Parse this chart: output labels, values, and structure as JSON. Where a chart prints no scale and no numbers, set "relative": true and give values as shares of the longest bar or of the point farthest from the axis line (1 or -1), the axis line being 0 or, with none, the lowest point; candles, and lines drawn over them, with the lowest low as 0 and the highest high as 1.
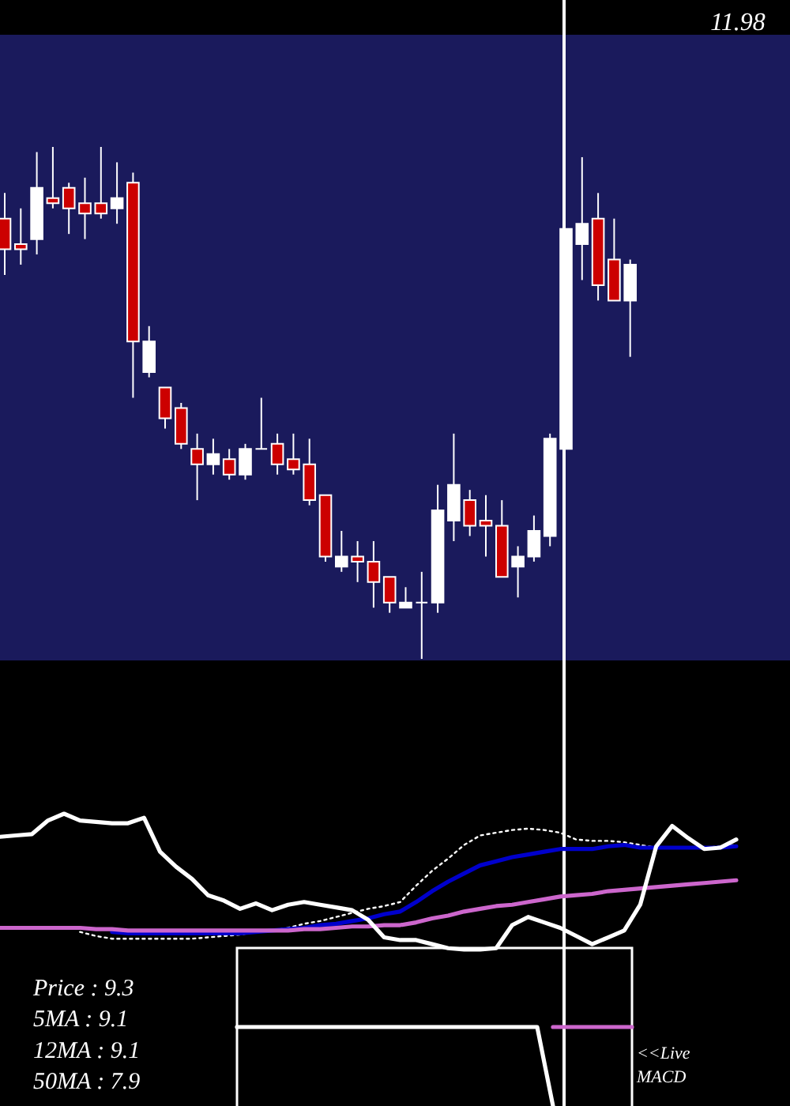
{
  "chart_data": [
    {
      "type": "candlestick",
      "relative": true,
      "tick_labels": false,
      "categories": [
        null,
        null,
        null,
        null,
        null,
        null,
        null,
        null,
        null,
        null,
        null,
        null,
        null,
        null,
        null,
        null,
        null,
        null,
        null,
        null,
        null,
        null,
        null,
        null,
        null,
        null,
        null,
        null,
        null,
        null,
        null,
        null,
        null,
        null,
        null,
        null,
        null,
        null,
        null,
        null
      ],
      "ohlc": [
        [
          0.86,
          0.91,
          0.75,
          0.8
        ],
        [
          0.81,
          0.88,
          0.77,
          0.8
        ],
        [
          0.82,
          0.99,
          0.79,
          0.92
        ],
        [
          0.9,
          1.0,
          0.88,
          0.89
        ],
        [
          0.92,
          0.93,
          0.83,
          0.88
        ],
        [
          0.89,
          0.94,
          0.82,
          0.87
        ],
        [
          0.89,
          1.0,
          0.86,
          0.87
        ],
        [
          0.88,
          0.97,
          0.85,
          0.9
        ],
        [
          0.93,
          0.95,
          0.51,
          0.62
        ],
        [
          0.56,
          0.65,
          0.55,
          0.62
        ],
        [
          0.53,
          0.53,
          0.45,
          0.47
        ],
        [
          0.49,
          0.5,
          0.41,
          0.42
        ],
        [
          0.41,
          0.44,
          0.31,
          0.38
        ],
        [
          0.38,
          0.43,
          0.36,
          0.4
        ],
        [
          0.39,
          0.41,
          0.35,
          0.36
        ],
        [
          0.36,
          0.42,
          0.35,
          0.41
        ],
        [
          0.41,
          0.51,
          0.41,
          0.41
        ],
        [
          0.42,
          0.44,
          0.36,
          0.38
        ],
        [
          0.39,
          0.44,
          0.36,
          0.37
        ],
        [
          0.38,
          0.43,
          0.3,
          0.31
        ],
        [
          0.32,
          0.32,
          0.19,
          0.2
        ],
        [
          0.18,
          0.25,
          0.17,
          0.2
        ],
        [
          0.2,
          0.23,
          0.15,
          0.19
        ],
        [
          0.19,
          0.23,
          0.1,
          0.15
        ],
        [
          0.16,
          0.16,
          0.09,
          0.11
        ],
        [
          0.1,
          0.14,
          0.1,
          0.11
        ],
        [
          0.11,
          0.17,
          0.0,
          0.11
        ],
        [
          0.11,
          0.34,
          0.09,
          0.29
        ],
        [
          0.27,
          0.44,
          0.23,
          0.34
        ],
        [
          0.31,
          0.33,
          0.24,
          0.26
        ],
        [
          0.27,
          0.32,
          0.2,
          0.26
        ],
        [
          0.26,
          0.31,
          0.16,
          0.16
        ],
        [
          0.18,
          0.22,
          0.12,
          0.2
        ],
        [
          0.2,
          0.28,
          0.19,
          0.25
        ],
        [
          0.24,
          0.44,
          0.22,
          0.43
        ],
        [
          0.41,
          0.84,
          0.41,
          0.84
        ],
        [
          0.81,
          0.98,
          0.74,
          0.85
        ],
        [
          0.86,
          0.91,
          0.7,
          0.73
        ],
        [
          0.78,
          0.86,
          0.7,
          0.7
        ],
        [
          0.7,
          0.78,
          0.59,
          0.77
        ]
      ],
      "colors": [
        "#cc0000",
        "#cc0000",
        "#ffffff",
        "#cc0000",
        "#cc0000",
        "#cc0000",
        "#cc0000",
        "#ffffff",
        "#cc0000",
        "#ffffff",
        "#cc0000",
        "#cc0000",
        "#cc0000",
        "#ffffff",
        "#cc0000",
        "#ffffff",
        "#ffffff",
        "#cc0000",
        "#cc0000",
        "#cc0000",
        "#cc0000",
        "#ffffff",
        "#cc0000",
        "#cc0000",
        "#cc0000",
        "#ffffff",
        "#ffffff",
        "#ffffff",
        "#ffffff",
        "#cc0000",
        "#cc0000",
        "#cc0000",
        "#ffffff",
        "#ffffff",
        "#ffffff",
        "#ffffff",
        "#ffffff",
        "#cc0000",
        "#cc0000",
        "#ffffff"
      ],
      "annotations": [
        "11.98"
      ]
    },
    {
      "type": "line",
      "relative": true,
      "tick_labels": false,
      "categories": [
        null,
        null,
        null,
        null,
        null,
        null,
        null,
        null,
        null,
        null,
        null,
        null,
        null,
        null,
        null,
        null,
        null,
        null,
        null,
        null,
        null,
        null,
        null,
        null,
        null,
        null,
        null,
        null,
        null,
        null,
        null,
        null,
        null,
        null,
        null,
        null,
        null,
        null,
        null,
        null,
        null,
        null,
        null,
        null,
        null,
        null,
        null
      ],
      "series": [
        {
          "color": "#ffffff",
          "line_style": "dotted",
          "values": [
            null,
            null,
            null,
            null,
            null,
            0.13,
            0.1,
            0.08,
            0.08,
            0.08,
            0.08,
            0.08,
            0.08,
            0.09,
            0.1,
            0.11,
            0.13,
            0.14,
            0.16,
            0.19,
            0.21,
            0.24,
            0.27,
            0.3,
            0.32,
            0.35,
            0.47,
            0.58,
            0.67,
            0.77,
            0.84,
            0.86,
            0.88,
            0.89,
            0.88,
            0.86,
            0.81,
            0.8,
            0.8,
            0.79,
            0.77,
            0.75,
            0.75,
            0.75,
            0.75,
            0.76,
            0.77
          ]
        },
        {
          "color": "#0000cc",
          "values": [
            null,
            null,
            null,
            null,
            null,
            null,
            null,
            0.13,
            0.12,
            0.12,
            0.12,
            0.12,
            0.12,
            0.12,
            0.12,
            0.12,
            0.13,
            0.14,
            0.15,
            0.16,
            0.18,
            0.19,
            0.21,
            0.23,
            0.26,
            0.28,
            0.35,
            0.43,
            0.5,
            0.56,
            0.62,
            0.65,
            0.68,
            0.7,
            0.72,
            0.74,
            0.74,
            0.74,
            0.76,
            0.77,
            0.75,
            0.75,
            0.75,
            0.75,
            0.75,
            0.75,
            0.76
          ]
        },
        {
          "color": "#cc66cc",
          "values": [
            0.16,
            0.16,
            0.16,
            0.16,
            0.16,
            0.16,
            0.15,
            0.15,
            0.14,
            0.14,
            0.14,
            0.14,
            0.14,
            0.14,
            0.14,
            0.14,
            0.14,
            0.14,
            0.14,
            0.15,
            0.15,
            0.16,
            0.17,
            0.17,
            0.18,
            0.18,
            0.2,
            0.23,
            0.25,
            0.28,
            0.3,
            0.32,
            0.33,
            0.35,
            0.37,
            0.39,
            0.4,
            0.41,
            0.43,
            0.44,
            0.45,
            0.46,
            0.47,
            0.48,
            0.49,
            0.5,
            0.51
          ]
        },
        {
          "color": "#ffffff",
          "values": [
            0.83,
            0.84,
            0.85,
            0.95,
            1.0,
            0.95,
            0.94,
            0.93,
            0.93,
            0.97,
            0.72,
            0.61,
            0.52,
            0.4,
            0.36,
            0.3,
            0.34,
            0.29,
            0.33,
            0.35,
            0.33,
            0.31,
            0.29,
            0.22,
            0.09,
            0.07,
            0.07,
            0.04,
            0.01,
            0.0,
            0.0,
            0.01,
            0.18,
            0.24,
            0.2,
            0.16,
            0.1,
            0.04,
            0.09,
            0.14,
            0.33,
            0.76,
            0.91,
            0.82,
            0.74,
            0.75,
            0.81
          ]
        }
      ],
      "annotations": [
        "Price : 9.3",
        "5MA : 9.1",
        "12MA : 9.1",
        "50MA : 7.9"
      ]
    },
    {
      "type": "line",
      "relative": true,
      "tick_labels": false,
      "categories": [
        null,
        null,
        null,
        null,
        null,
        null,
        null,
        null,
        null,
        null,
        null,
        null,
        null,
        null,
        null,
        null,
        null,
        null,
        null,
        null,
        null,
        null,
        null,
        null,
        null,
        null
      ],
      "series": [
        {
          "color": "#ffffff",
          "values": [
            1,
            1,
            1,
            1,
            1,
            1,
            1,
            1,
            1,
            1,
            1,
            1,
            1,
            1,
            1,
            1,
            1,
            1,
            1,
            1,
            0,
            null,
            null,
            null,
            null,
            null
          ]
        },
        {
          "color": "#cc66cc",
          "values": [
            null,
            null,
            null,
            null,
            null,
            null,
            null,
            null,
            null,
            null,
            null,
            null,
            null,
            null,
            null,
            null,
            null,
            null,
            null,
            null,
            1,
            1,
            1,
            1,
            1,
            1
          ]
        }
      ],
      "annotations": [
        "<<Live MACD"
      ]
    }
  ]
}
